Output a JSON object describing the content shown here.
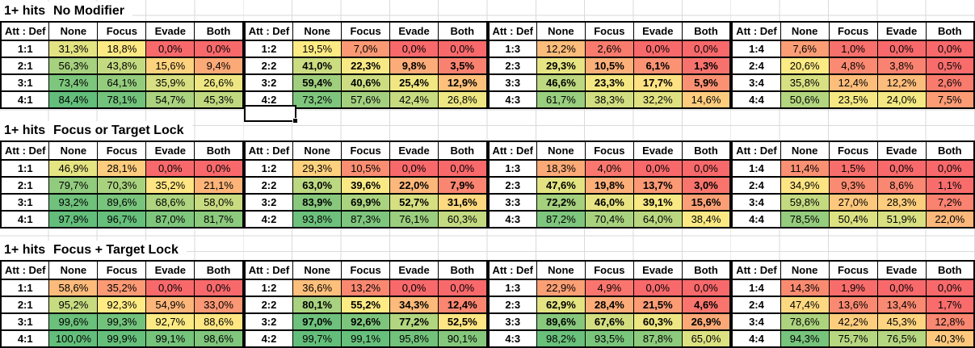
{
  "colors": {
    "scale_low": "#F8696B",
    "scale_mid": "#FFEB84",
    "scale_high": "#63BE7B",
    "gridline": "#DADADA",
    "cell_border": "#000000",
    "text": "#000000"
  },
  "column_headers": [
    "Att : Def",
    "None",
    "Focus",
    "Evade",
    "Both"
  ],
  "sections": [
    {
      "title_prefix": "1+ hits",
      "title": "No Modifier",
      "tables": [
        {
          "scale": "s1",
          "rows": [
            {
              "label": "1:1",
              "bold": false,
              "values": [
                "31,3%",
                "18,8%",
                "0,0%",
                "0,0%"
              ]
            },
            {
              "label": "2:1",
              "bold": false,
              "values": [
                "56,3%",
                "43,8%",
                "15,6%",
                "9,4%"
              ]
            },
            {
              "label": "3:1",
              "bold": false,
              "values": [
                "73,4%",
                "64,1%",
                "35,9%",
                "26,6%"
              ]
            },
            {
              "label": "4:1",
              "bold": false,
              "values": [
                "84,4%",
                "78,1%",
                "54,7%",
                "45,3%"
              ]
            }
          ]
        },
        {
          "scale": "s1",
          "rows": [
            {
              "label": "1:2",
              "bold": false,
              "values": [
                "19,5%",
                "7,0%",
                "0,0%",
                "0,0%"
              ]
            },
            {
              "label": "2:2",
              "bold": true,
              "values": [
                "41,0%",
                "22,3%",
                "9,8%",
                "3,5%"
              ]
            },
            {
              "label": "3:2",
              "bold": true,
              "values": [
                "59,4%",
                "40,6%",
                "25,4%",
                "12,9%"
              ]
            },
            {
              "label": "4:2",
              "bold": false,
              "values": [
                "73,2%",
                "57,6%",
                "42,4%",
                "26,8%"
              ]
            }
          ]
        },
        {
          "scale": "s1",
          "rows": [
            {
              "label": "1:3",
              "bold": false,
              "values": [
                "12,2%",
                "2,6%",
                "0,0%",
                "0,0%"
              ]
            },
            {
              "label": "2:3",
              "bold": true,
              "values": [
                "29,3%",
                "10,5%",
                "6,1%",
                "1,3%"
              ]
            },
            {
              "label": "3:3",
              "bold": true,
              "values": [
                "46,6%",
                "23,3%",
                "17,7%",
                "5,9%"
              ]
            },
            {
              "label": "4:3",
              "bold": false,
              "values": [
                "61,7%",
                "38,3%",
                "32,2%",
                "14,6%"
              ]
            }
          ]
        },
        {
          "scale": "s1",
          "rows": [
            {
              "label": "1:4",
              "bold": false,
              "values": [
                "7,6%",
                "1,0%",
                "0,0%",
                "0,0%"
              ]
            },
            {
              "label": "2:4",
              "bold": false,
              "values": [
                "20,6%",
                "4,8%",
                "3,8%",
                "0,5%"
              ]
            },
            {
              "label": "3:4",
              "bold": false,
              "values": [
                "35,8%",
                "12,4%",
                "12,2%",
                "2,6%"
              ]
            },
            {
              "label": "4:4",
              "bold": false,
              "values": [
                "50,6%",
                "23,5%",
                "24,0%",
                "7,5%"
              ]
            }
          ]
        }
      ]
    },
    {
      "title_prefix": "1+ hits",
      "title": "Focus or Target Lock",
      "tables": [
        {
          "scale": "s2",
          "rows": [
            {
              "label": "1:1",
              "bold": false,
              "values": [
                "46,9%",
                "28,1%",
                "0,0%",
                "0,0%"
              ]
            },
            {
              "label": "2:1",
              "bold": false,
              "values": [
                "79,7%",
                "70,3%",
                "35,2%",
                "21,1%"
              ]
            },
            {
              "label": "3:1",
              "bold": false,
              "values": [
                "93,2%",
                "89,6%",
                "68,6%",
                "58,0%"
              ]
            },
            {
              "label": "4:1",
              "bold": false,
              "values": [
                "97,9%",
                "96,7%",
                "87,0%",
                "81,7%"
              ]
            }
          ]
        },
        {
          "scale": "s2",
          "rows": [
            {
              "label": "1:2",
              "bold": false,
              "values": [
                "29,3%",
                "10,5%",
                "0,0%",
                "0,0%"
              ]
            },
            {
              "label": "2:2",
              "bold": true,
              "values": [
                "63,0%",
                "39,6%",
                "22,0%",
                "7,9%"
              ]
            },
            {
              "label": "3:2",
              "bold": true,
              "values": [
                "83,9%",
                "69,9%",
                "52,7%",
                "31,6%"
              ]
            },
            {
              "label": "4:2",
              "bold": false,
              "values": [
                "93,8%",
                "87,3%",
                "76,1%",
                "60,3%"
              ]
            }
          ]
        },
        {
          "scale": "s2",
          "rows": [
            {
              "label": "1:3",
              "bold": false,
              "values": [
                "18,3%",
                "4,0%",
                "0,0%",
                "0,0%"
              ]
            },
            {
              "label": "2:3",
              "bold": true,
              "values": [
                "47,6%",
                "19,8%",
                "13,7%",
                "3,0%"
              ]
            },
            {
              "label": "3:3",
              "bold": true,
              "values": [
                "72,2%",
                "46,0%",
                "39,1%",
                "15,6%"
              ]
            },
            {
              "label": "4:3",
              "bold": false,
              "values": [
                "87,2%",
                "70,4%",
                "64,0%",
                "38,4%"
              ]
            }
          ]
        },
        {
          "scale": "s2",
          "rows": [
            {
              "label": "1:4",
              "bold": false,
              "values": [
                "11,4%",
                "1,5%",
                "0,0%",
                "0,0%"
              ]
            },
            {
              "label": "2:4",
              "bold": false,
              "values": [
                "34,9%",
                "9,3%",
                "8,6%",
                "1,1%"
              ]
            },
            {
              "label": "3:4",
              "bold": false,
              "values": [
                "59,8%",
                "27,0%",
                "28,3%",
                "7,2%"
              ]
            },
            {
              "label": "4:4",
              "bold": false,
              "values": [
                "78,5%",
                "50,4%",
                "51,9%",
                "22,0%"
              ]
            }
          ]
        }
      ]
    },
    {
      "title_prefix": "1+ hits",
      "title": "Focus + Target Lock",
      "tables": [
        {
          "scale": "s3_t1",
          "rows": [
            {
              "label": "1:1",
              "bold": false,
              "values": [
                "58,6%",
                "35,2%",
                "0,0%",
                "0,0%"
              ]
            },
            {
              "label": "2:1",
              "bold": false,
              "values": [
                "95,2%",
                "92,3%",
                "54,9%",
                "33,0%"
              ]
            },
            {
              "label": "3:1",
              "bold": false,
              "values": [
                "99,6%",
                "99,3%",
                "92,7%",
                "88,6%"
              ]
            },
            {
              "label": "4:1",
              "bold": false,
              "values": [
                "100,0%",
                "99,9%",
                "99,1%",
                "98,6%"
              ]
            }
          ]
        },
        {
          "scale": "s3_all",
          "rows": [
            {
              "label": "1:2",
              "bold": false,
              "values": [
                "36,6%",
                "13,2%",
                "0,0%",
                "0,0%"
              ]
            },
            {
              "label": "2:2",
              "bold": true,
              "values": [
                "80,1%",
                "55,2%",
                "34,3%",
                "12,4%"
              ]
            },
            {
              "label": "3:2",
              "bold": true,
              "values": [
                "97,0%",
                "92,6%",
                "77,2%",
                "52,5%"
              ]
            },
            {
              "label": "4:2",
              "bold": false,
              "values": [
                "99,7%",
                "99,1%",
                "95,8%",
                "90,1%"
              ]
            }
          ]
        },
        {
          "scale": "s3_all",
          "rows": [
            {
              "label": "1:3",
              "bold": false,
              "values": [
                "22,9%",
                "4,9%",
                "0,0%",
                "0,0%"
              ]
            },
            {
              "label": "2:3",
              "bold": true,
              "values": [
                "62,9%",
                "28,4%",
                "21,5%",
                "4,6%"
              ]
            },
            {
              "label": "3:3",
              "bold": true,
              "values": [
                "89,6%",
                "67,6%",
                "60,3%",
                "26,9%"
              ]
            },
            {
              "label": "4:3",
              "bold": false,
              "values": [
                "98,2%",
                "93,5%",
                "87,8%",
                "65,0%"
              ]
            }
          ]
        },
        {
          "scale": "s3_all",
          "rows": [
            {
              "label": "1:4",
              "bold": false,
              "values": [
                "14,3%",
                "1,9%",
                "0,0%",
                "0,0%"
              ]
            },
            {
              "label": "2:4",
              "bold": false,
              "values": [
                "47,4%",
                "13,6%",
                "13,4%",
                "1,7%"
              ]
            },
            {
              "label": "3:4",
              "bold": false,
              "values": [
                "78,6%",
                "42,2%",
                "45,3%",
                "12,8%"
              ]
            },
            {
              "label": "4:4",
              "bold": false,
              "values": [
                "94,3%",
                "75,7%",
                "76,5%",
                "40,3%"
              ]
            }
          ]
        }
      ]
    }
  ],
  "scales": {
    "s1": {
      "tables": [
        [
          0,
          0
        ],
        [
          0,
          1
        ],
        [
          0,
          2
        ],
        [
          0,
          3
        ]
      ]
    },
    "s2": {
      "tables": [
        [
          1,
          0
        ],
        [
          1,
          1
        ],
        [
          1,
          2
        ],
        [
          1,
          3
        ]
      ]
    },
    "s3_t1": {
      "tables": [
        [
          2,
          0
        ]
      ]
    },
    "s3_all": {
      "tables": [
        [
          2,
          0
        ],
        [
          2,
          1
        ],
        [
          2,
          2
        ],
        [
          2,
          3
        ]
      ]
    }
  }
}
